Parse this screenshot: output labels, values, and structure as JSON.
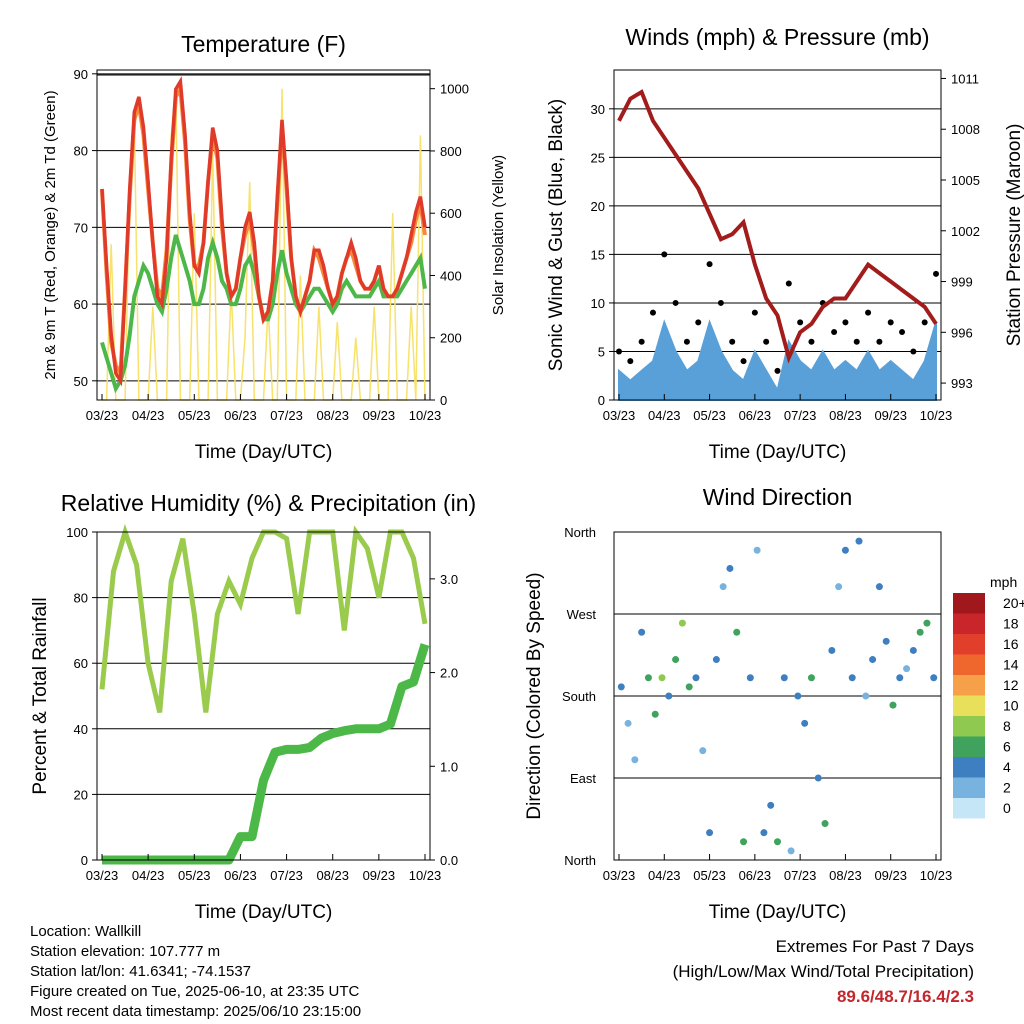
{
  "x_ticks": [
    "03/23",
    "04/23",
    "05/23",
    "06/23",
    "07/23",
    "08/23",
    "09/23",
    "10/23"
  ],
  "colors": {
    "temp_2m": "#e03a2a",
    "temp_9m": "#f6883a",
    "dewpoint": "#4db849",
    "solar": "#f7e26b",
    "wind": "#5aa0d8",
    "gust": "#000000",
    "pressure": "#a31c1c",
    "rh": "#9acb4d",
    "precip": "#4cb848",
    "extremes_value": "#c1272d"
  },
  "chart_data": [
    {
      "type": "line",
      "title": "Temperature (F)",
      "xlabel": "Time (Day/UTC)",
      "ylabel": "2m & 9m T (Red, Orange) & 2m Td (Green)",
      "y2label": "Solar Insolation (Yellow)",
      "ylim": [
        47.5,
        90.5
      ],
      "y2lim": [
        0,
        1060
      ],
      "yticks": [
        50,
        60,
        70,
        80,
        90
      ],
      "y2ticks": [
        0,
        200,
        400,
        600,
        800,
        1000
      ],
      "x": [
        0,
        0.1,
        0.2,
        0.3,
        0.4,
        0.5,
        0.6,
        0.7,
        0.8,
        0.9,
        1.0,
        1.1,
        1.2,
        1.3,
        1.4,
        1.5,
        1.6,
        1.7,
        1.8,
        1.9,
        2.0,
        2.1,
        2.2,
        2.3,
        2.4,
        2.5,
        2.6,
        2.7,
        2.8,
        2.9,
        3.0,
        3.1,
        3.2,
        3.3,
        3.4,
        3.5,
        3.6,
        3.7,
        3.8,
        3.9,
        4.0,
        4.1,
        4.2,
        4.3,
        4.4,
        4.5,
        4.6,
        4.7,
        4.8,
        4.9,
        5.0,
        5.1,
        5.2,
        5.3,
        5.4,
        5.5,
        5.6,
        5.7,
        5.8,
        5.9,
        6.0,
        6.1,
        6.2,
        6.3,
        6.4,
        6.5,
        6.6,
        6.7,
        6.8,
        6.9,
        7.0
      ],
      "series": [
        {
          "name": "2m T",
          "values": [
            75,
            65,
            56,
            51,
            50,
            62,
            75,
            85,
            87,
            83,
            76,
            68,
            61,
            60,
            66,
            79,
            88,
            89,
            82,
            72,
            65,
            64,
            68,
            76,
            83,
            80,
            71,
            64,
            61,
            62,
            66,
            70,
            72,
            68,
            61,
            58,
            59,
            63,
            74,
            84,
            76,
            66,
            61,
            59,
            61,
            63,
            67,
            67,
            65,
            62,
            60,
            61,
            64,
            66,
            68,
            66,
            63,
            62,
            62,
            63,
            65,
            62,
            61,
            61,
            62,
            64,
            66,
            69,
            72,
            74,
            70
          ]
        },
        {
          "name": "9m T",
          "values": [
            75,
            64,
            55,
            52,
            51,
            62,
            74,
            84,
            86,
            82,
            75,
            68,
            62,
            61,
            67,
            78,
            87,
            88,
            81,
            71,
            65,
            65,
            68,
            76,
            82,
            79,
            70,
            64,
            61,
            62,
            66,
            69,
            71,
            67,
            61,
            58,
            59,
            63,
            73,
            83,
            75,
            66,
            61,
            59,
            61,
            63,
            67,
            66,
            64,
            62,
            60,
            61,
            64,
            66,
            67,
            65,
            63,
            62,
            62,
            63,
            65,
            62,
            61,
            61,
            62,
            64,
            66,
            68,
            71,
            73,
            69
          ]
        },
        {
          "name": "2m Td",
          "values": [
            55,
            53,
            51,
            49,
            50,
            52,
            56,
            61,
            63,
            65,
            64,
            62,
            60,
            59,
            62,
            66,
            69,
            67,
            65,
            63,
            60,
            60,
            62,
            66,
            68,
            66,
            63,
            62,
            60,
            60,
            62,
            65,
            66,
            64,
            61,
            58,
            58,
            60,
            64,
            67,
            64,
            62,
            60,
            59,
            60,
            61,
            62,
            62,
            61,
            60,
            59,
            60,
            62,
            63,
            62,
            61,
            61,
            61,
            61,
            62,
            63,
            61,
            61,
            61,
            61,
            62,
            63,
            64,
            65,
            66,
            62
          ]
        },
        {
          "name": "Solar",
          "values": [
            0,
            0,
            500,
            0,
            0,
            0,
            700,
            900,
            0,
            0,
            0,
            300,
            0,
            0,
            0,
            850,
            1000,
            0,
            0,
            0,
            600,
            0,
            0,
            0,
            800,
            0,
            0,
            0,
            350,
            0,
            0,
            200,
            700,
            0,
            0,
            0,
            300,
            0,
            0,
            1000,
            0,
            0,
            0,
            400,
            0,
            0,
            0,
            300,
            0,
            0,
            0,
            250,
            0,
            0,
            0,
            200,
            0,
            0,
            0,
            300,
            0,
            0,
            0,
            600,
            0,
            0,
            0,
            300,
            0,
            850,
            0
          ]
        }
      ]
    },
    {
      "type": "line",
      "title": "Winds (mph) & Pressure (mb)",
      "xlabel": "Time (Day/UTC)",
      "ylabel": "Sonic Wind & Gust (Blue, Black)",
      "y2label": "Station Pressure (Maroon)",
      "ylim": [
        0,
        34
      ],
      "y2lim": [
        992,
        1011.5
      ],
      "yticks": [
        0,
        5,
        10,
        15,
        20,
        25,
        30
      ],
      "y2ticks": [
        993,
        996,
        999,
        1002,
        1005,
        1008,
        1011
      ],
      "x": [
        0,
        0.25,
        0.5,
        0.75,
        1.0,
        1.25,
        1.5,
        1.75,
        2.0,
        2.25,
        2.5,
        2.75,
        3.0,
        3.25,
        3.5,
        3.75,
        4.0,
        4.25,
        4.5,
        4.75,
        5.0,
        5.25,
        5.5,
        5.75,
        6.0,
        6.25,
        6.5,
        6.75,
        7.0
      ],
      "series": [
        {
          "name": "Pressure",
          "values": [
            1008.5,
            1009.8,
            1010.2,
            1008.5,
            1007.5,
            1006.5,
            1005.5,
            1004.5,
            1003,
            1001.5,
            1001.8,
            1002.5,
            1000,
            998,
            997,
            994.5,
            996,
            996.5,
            997.5,
            998,
            998,
            999,
            1000,
            999.5,
            999,
            998.5,
            998,
            997.5,
            996.5
          ]
        },
        {
          "name": "Wind",
          "values": [
            3,
            2,
            3,
            4,
            8,
            5,
            3,
            4,
            8,
            5,
            3,
            2,
            5,
            3,
            1,
            6,
            4,
            3,
            5,
            3,
            4,
            3,
            5,
            3,
            4,
            3,
            2,
            4,
            8
          ]
        },
        {
          "name": "Gust",
          "values": [
            5,
            4,
            6,
            9,
            15,
            10,
            6,
            8,
            14,
            10,
            6,
            4,
            9,
            6,
            3,
            12,
            8,
            6,
            10,
            7,
            8,
            6,
            9,
            6,
            8,
            7,
            5,
            8,
            13
          ]
        }
      ]
    },
    {
      "type": "line",
      "title": "Relative Humidity (%) & Precipitation (in)",
      "xlabel": "Time (Day/UTC)",
      "ylabel": "Percent & Total Rainfall",
      "ylim": [
        0,
        100
      ],
      "y2lim": [
        0,
        3.5
      ],
      "yticks": [
        0,
        20,
        40,
        60,
        80,
        100
      ],
      "y2ticks": [
        "0.0",
        "1.0",
        "2.0",
        "3.0"
      ],
      "x": [
        0,
        0.25,
        0.5,
        0.75,
        1.0,
        1.25,
        1.5,
        1.75,
        2.0,
        2.25,
        2.5,
        2.75,
        3.0,
        3.25,
        3.5,
        3.75,
        4.0,
        4.25,
        4.5,
        4.75,
        5.0,
        5.25,
        5.5,
        5.75,
        6.0,
        6.25,
        6.5,
        6.75,
        7.0
      ],
      "series": [
        {
          "name": "RH",
          "values": [
            52,
            88,
            100,
            90,
            60,
            45,
            85,
            98,
            75,
            45,
            75,
            85,
            78,
            92,
            100,
            100,
            98,
            75,
            100,
            100,
            100,
            70,
            100,
            95,
            80,
            100,
            100,
            92,
            72
          ]
        },
        {
          "name": "Precip",
          "values": [
            0,
            0,
            0,
            0,
            0,
            0,
            0,
            0,
            0,
            0,
            0,
            0,
            0.25,
            0.25,
            0.85,
            1.15,
            1.18,
            1.18,
            1.2,
            1.3,
            1.35,
            1.38,
            1.4,
            1.4,
            1.4,
            1.45,
            1.85,
            1.9,
            2.3
          ]
        }
      ]
    },
    {
      "type": "scatter",
      "title": "Wind Direction",
      "xlabel": "Time (Day/UTC)",
      "ylabel": "Direction (Colored By Speed)",
      "yticks": [
        "North",
        "East",
        "South",
        "West",
        "North"
      ],
      "legend_title": "mph",
      "legend_levels": [
        "20+",
        "18",
        "16",
        "14",
        "12",
        "10",
        "8",
        "6",
        "4",
        "2",
        "0"
      ],
      "legend_colors": [
        "#a0171c",
        "#c8262b",
        "#e23e2c",
        "#f0672e",
        "#f6a04a",
        "#e8e05a",
        "#8fc94f",
        "#3fa35d",
        "#3e7fc1",
        "#78b3e0",
        "#c5e6f7"
      ],
      "x": [
        0.05,
        0.2,
        0.35,
        0.5,
        0.65,
        0.8,
        0.95,
        1.1,
        1.25,
        1.4,
        1.55,
        1.7,
        1.85,
        2.0,
        2.15,
        2.3,
        2.45,
        2.6,
        2.75,
        2.9,
        3.05,
        3.2,
        3.35,
        3.5,
        3.65,
        3.8,
        3.95,
        4.1,
        4.25,
        4.4,
        4.55,
        4.7,
        4.85,
        5.0,
        5.15,
        5.3,
        5.45,
        5.6,
        5.75,
        5.9,
        6.05,
        6.2,
        6.35,
        6.5,
        6.65,
        6.8,
        6.95
      ],
      "y": [
        190,
        150,
        110,
        250,
        200,
        160,
        200,
        180,
        220,
        260,
        190,
        200,
        120,
        30,
        220,
        300,
        320,
        250,
        20,
        200,
        340,
        30,
        60,
        20,
        200,
        10,
        180,
        150,
        200,
        90,
        40,
        230,
        300,
        340,
        200,
        350,
        180,
        220,
        300,
        240,
        170,
        200,
        210,
        230,
        250,
        260,
        200
      ],
      "speed": [
        3,
        2,
        1,
        3,
        6,
        5,
        8,
        4,
        5,
        7,
        6,
        3,
        2,
        4,
        3,
        2,
        4,
        6,
        5,
        3,
        2,
        3,
        4,
        6,
        3,
        2,
        4,
        3,
        5,
        4,
        6,
        3,
        2,
        3,
        4,
        3,
        2,
        4,
        3,
        4,
        5,
        3,
        2,
        4,
        5,
        6,
        4
      ]
    }
  ],
  "info": {
    "location": "Location: Wallkill",
    "elevation": "Station elevation: 107.777 m",
    "latlon": "Station lat/lon: 41.6341; -74.1537",
    "created": "Figure created on Tue, 2025-06-10, at 23:35 UTC",
    "recent": "Most recent data timestamp: 2025/06/10 23:15:00"
  },
  "extremes": {
    "line1": "Extremes For Past 7 Days",
    "line2": "(High/Low/Max Wind/Total Precipitation)",
    "value": "89.6/48.7/16.4/2.3"
  }
}
